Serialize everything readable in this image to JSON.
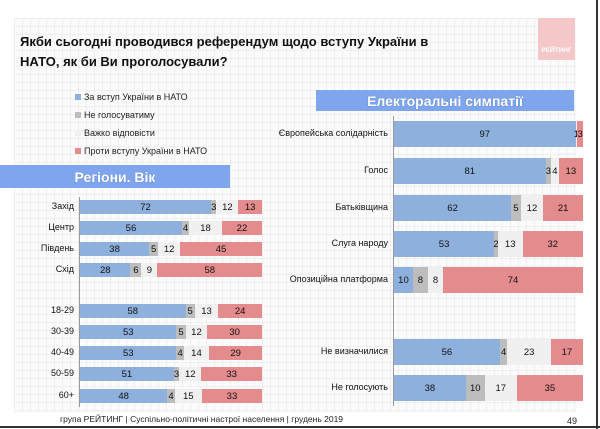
{
  "title": "Якби сьогодні проводився референдум щодо вступу України в НАТО, як би Ви проголосували?",
  "logo_text": "РЕЙТИНГ",
  "footer": "група РЕЙТИНГ | Суспільно-політичні настрої населення | грудень 2019",
  "page_number": "49",
  "colors": {
    "for": "#8eb0dc",
    "novote": "#bdbdbd",
    "hard": "#f0f0f0",
    "against": "#e48b8d"
  },
  "chart_data": [
    {
      "type": "bar",
      "stacked": true,
      "orientation": "horizontal",
      "title": "Регіони. Вік",
      "legend": [
        "За вступ України в НАТО",
        "Не голосуватиму",
        "Важко відповісти",
        "Проти вступу України в НАТО"
      ],
      "categories": [
        "Захід",
        "Центр",
        "Південь",
        "Схід",
        "18-29",
        "30-39",
        "40-49",
        "50-59",
        "60+"
      ],
      "series": [
        {
          "name": "За вступ України в НАТО",
          "values": [
            72,
            56,
            38,
            28,
            58,
            53,
            53,
            51,
            48
          ]
        },
        {
          "name": "Не голосуватиму",
          "values": [
            3,
            4,
            5,
            6,
            5,
            5,
            4,
            3,
            4
          ]
        },
        {
          "name": "Важко відповісти",
          "values": [
            12,
            18,
            12,
            9,
            13,
            12,
            14,
            12,
            15
          ]
        },
        {
          "name": "Проти вступу України в НАТО",
          "values": [
            13,
            22,
            45,
            58,
            24,
            30,
            29,
            33,
            33
          ]
        }
      ]
    },
    {
      "type": "bar",
      "stacked": true,
      "orientation": "horizontal",
      "title": "Електоральні симпатії",
      "categories": [
        "Європейська солідарність",
        "Голос",
        "Батьківщина",
        "Слуга народу",
        "Опозиційна платформа",
        "Не визначилися",
        "Не голосують"
      ],
      "series": [
        {
          "name": "За вступ України в НАТО",
          "values": [
            97,
            81,
            62,
            53,
            10,
            56,
            38
          ]
        },
        {
          "name": "Не голосуватиму",
          "values": [
            0,
            3,
            5,
            2,
            8,
            4,
            10
          ]
        },
        {
          "name": "Важко відповісти",
          "values": [
            1,
            4,
            12,
            13,
            8,
            23,
            17
          ]
        },
        {
          "name": "Проти вступу України в НАТО",
          "values": [
            3,
            13,
            21,
            32,
            74,
            17,
            35
          ]
        }
      ]
    }
  ]
}
